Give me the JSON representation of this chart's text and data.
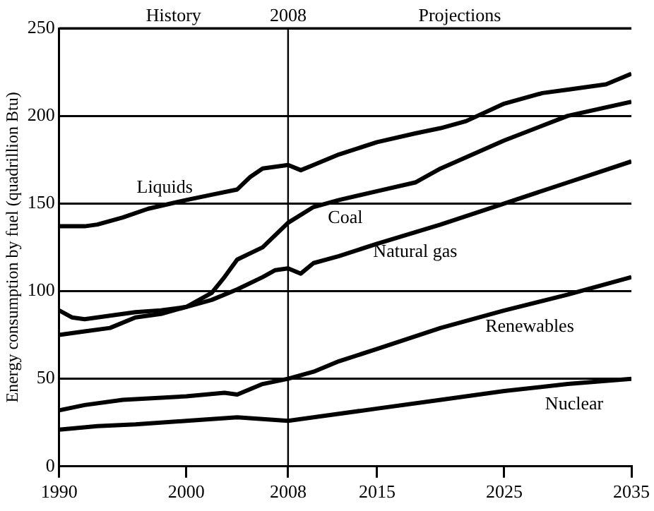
{
  "chart_data": {
    "type": "line",
    "ylabel": "Energy consumption by fuel (quadrillion Btu)",
    "xlim": [
      1990,
      2035
    ],
    "xticks": [
      1990,
      2000,
      2008,
      2015,
      2025,
      2035
    ],
    "ylim": [
      0,
      250
    ],
    "yticks": [
      0,
      50,
      100,
      150,
      200,
      250
    ],
    "grid": "y",
    "legend": false,
    "marker": "none",
    "line_style": "solid",
    "ref_lines": [
      {
        "axis": "x",
        "value": 2008,
        "label": "2008",
        "color": "#000000"
      }
    ],
    "annotations": [
      "History",
      "Projections"
    ],
    "series": [
      {
        "name": "Liquids",
        "color": "#000000",
        "x": [
          1990,
          1992,
          1993,
          1995,
          1997,
          2000,
          2002,
          2004,
          2005,
          2006,
          2007,
          2008,
          2009,
          2010,
          2012,
          2015,
          2018,
          2020,
          2022,
          2025,
          2028,
          2030,
          2033,
          2035
        ],
        "values": [
          137,
          137,
          138,
          142,
          147,
          152,
          155,
          158,
          165,
          170,
          171,
          172,
          169,
          172,
          178,
          185,
          190,
          193,
          197,
          207,
          213,
          215,
          218,
          224
        ]
      },
      {
        "name": "Coal",
        "color": "#000000",
        "x": [
          1990,
          1991,
          1992,
          1994,
          1996,
          1998,
          2000,
          2002,
          2003,
          2004,
          2006,
          2008,
          2010,
          2012,
          2015,
          2018,
          2020,
          2025,
          2030,
          2035
        ],
        "values": [
          89,
          85,
          84,
          86,
          88,
          89,
          91,
          99,
          108,
          118,
          125,
          139,
          148,
          152,
          157,
          162,
          170,
          186,
          200,
          208
        ]
      },
      {
        "name": "Natural gas",
        "color": "#000000",
        "x": [
          1990,
          1992,
          1994,
          1996,
          1998,
          2000,
          2002,
          2004,
          2006,
          2007,
          2008,
          2009,
          2010,
          2012,
          2015,
          2020,
          2025,
          2030,
          2035
        ],
        "values": [
          75,
          77,
          79,
          85,
          87,
          91,
          95,
          101,
          108,
          112,
          113,
          110,
          116,
          120,
          127,
          138,
          150,
          162,
          174
        ]
      },
      {
        "name": "Renewables",
        "color": "#000000",
        "x": [
          1990,
          1992,
          1995,
          2000,
          2003,
          2004,
          2006,
          2008,
          2010,
          2012,
          2015,
          2020,
          2025,
          2030,
          2035
        ],
        "values": [
          32,
          35,
          38,
          40,
          42,
          41,
          47,
          50,
          54,
          60,
          67,
          79,
          89,
          98,
          108
        ]
      },
      {
        "name": "Nuclear",
        "color": "#000000",
        "x": [
          1990,
          1993,
          1996,
          2000,
          2004,
          2006,
          2008,
          2010,
          2015,
          2020,
          2025,
          2030,
          2035
        ],
        "values": [
          21,
          23,
          24,
          26,
          28,
          27,
          26,
          28,
          33,
          38,
          43,
          47,
          50
        ]
      }
    ]
  }
}
